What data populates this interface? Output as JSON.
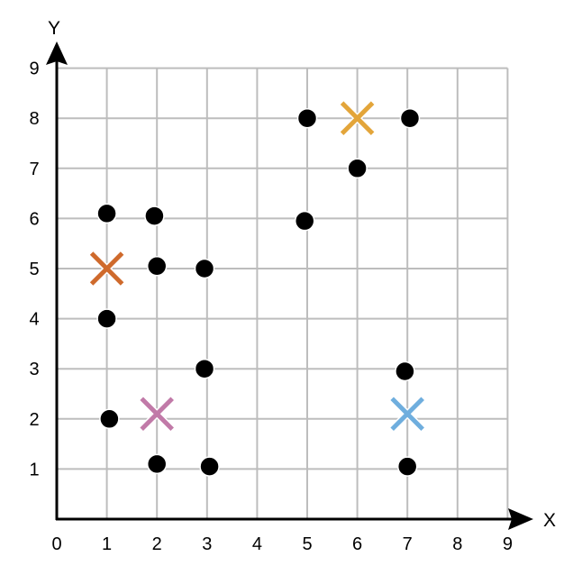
{
  "chart_data": {
    "type": "scatter",
    "title": "",
    "xlabel": "X",
    "ylabel": "Y",
    "xlim": [
      0,
      9
    ],
    "ylim": [
      0,
      9
    ],
    "x_ticks": [
      "0",
      "1",
      "2",
      "3",
      "4",
      "5",
      "6",
      "7",
      "8",
      "9"
    ],
    "y_ticks": [
      "1",
      "2",
      "3",
      "4",
      "5",
      "6",
      "7",
      "8",
      "9"
    ],
    "grid": true,
    "points": [
      {
        "x": 1,
        "y": 6.1
      },
      {
        "x": 1.95,
        "y": 6.05
      },
      {
        "x": 2,
        "y": 5.05
      },
      {
        "x": 2.95,
        "y": 5
      },
      {
        "x": 1,
        "y": 4
      },
      {
        "x": 1.05,
        "y": 2
      },
      {
        "x": 2.95,
        "y": 3
      },
      {
        "x": 2,
        "y": 1.1
      },
      {
        "x": 3.05,
        "y": 1.05
      },
      {
        "x": 4.95,
        "y": 5.95
      },
      {
        "x": 5,
        "y": 8
      },
      {
        "x": 6,
        "y": 7
      },
      {
        "x": 7.05,
        "y": 8
      },
      {
        "x": 6.95,
        "y": 2.95
      },
      {
        "x": 7,
        "y": 1.05
      }
    ],
    "centroids": [
      {
        "x": 1,
        "y": 5,
        "color": "#cf6a2c"
      },
      {
        "x": 2,
        "y": 2.1,
        "color": "#c17aa8"
      },
      {
        "x": 6,
        "y": 8,
        "color": "#e3a53a"
      },
      {
        "x": 7,
        "y": 2.1,
        "color": "#6faede"
      }
    ],
    "point_color": "#000000",
    "grid_color": "#bdbdbd"
  }
}
